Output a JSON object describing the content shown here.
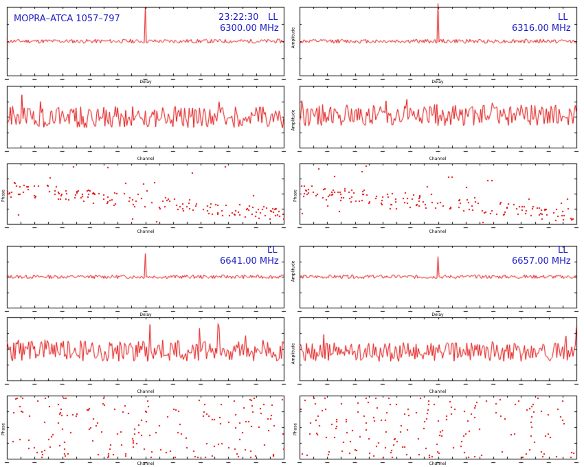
{
  "header": {
    "source": "MOPRA–ATCA 1057–797",
    "time": "23:22:30",
    "polarization": "LL"
  },
  "colors": {
    "trace": "#e00000",
    "title": "#1c1cc8",
    "axis": "#000000"
  },
  "chart_data": [
    {
      "id": "if1-delay",
      "type": "line",
      "kind": "delay",
      "freq_label": "6300.00 MHz",
      "pol": "LL",
      "xlabel": "Delay",
      "ylabel": "",
      "spike_at_fraction": 0.5,
      "spike_height": 0.78,
      "baseline": 0.5,
      "noise": 0.06,
      "seed": 11
    },
    {
      "id": "if2-delay",
      "type": "line",
      "kind": "delay",
      "freq_label": "6316.00 MHz",
      "pol": "LL",
      "xlabel": "Delay",
      "ylabel": "Amplitude",
      "spike_at_fraction": 0.5,
      "spike_height": 0.9,
      "baseline": 0.5,
      "noise": 0.06,
      "seed": 12
    },
    {
      "id": "if1-channel-amp",
      "type": "line",
      "kind": "channel",
      "xlabel": "Channel",
      "ylabel": "",
      "baseline": 0.32,
      "noise": 0.35,
      "seed": 21
    },
    {
      "id": "if2-channel-amp",
      "type": "line",
      "kind": "channel",
      "xlabel": "Channel",
      "ylabel": "Amplitude",
      "baseline": 0.35,
      "noise": 0.35,
      "seed": 22
    },
    {
      "id": "if1-channel-phase",
      "type": "scatter",
      "kind": "phase",
      "xlabel": "Channel",
      "ylabel": "Phase",
      "trend_start": 0.6,
      "trend_end": 0.15,
      "seed": 31
    },
    {
      "id": "if2-channel-phase",
      "type": "scatter",
      "kind": "phase",
      "xlabel": "Channel",
      "ylabel": "Phase",
      "trend_start": 0.55,
      "trend_end": 0.15,
      "seed": 32
    },
    {
      "id": "if3-delay",
      "type": "line",
      "kind": "delay",
      "freq_label": "6641.00 MHz",
      "pol": "LL",
      "xlabel": "Delay",
      "ylabel": "",
      "spike_at_fraction": 0.5,
      "spike_height": 0.55,
      "baseline": 0.5,
      "noise": 0.06,
      "seed": 13
    },
    {
      "id": "if4-delay",
      "type": "line",
      "kind": "delay",
      "freq_label": "6657.00 MHz",
      "pol": "LL",
      "xlabel": "Delay",
      "ylabel": "Amplitude",
      "spike_at_fraction": 0.5,
      "spike_height": 0.45,
      "baseline": 0.5,
      "noise": 0.06,
      "seed": 14
    },
    {
      "id": "if3-channel-amp",
      "type": "line",
      "kind": "channel",
      "xlabel": "Channel",
      "ylabel": "",
      "baseline": 0.3,
      "noise": 0.35,
      "seed": 23
    },
    {
      "id": "if4-channel-amp",
      "type": "line",
      "kind": "channel",
      "xlabel": "Channel",
      "ylabel": "Amplitude",
      "baseline": 0.3,
      "noise": 0.3,
      "seed": 24
    },
    {
      "id": "if3-channel-phase",
      "type": "scatter",
      "kind": "phase-random",
      "xlabel": "Channel",
      "ylabel": "Phase",
      "seed": 33
    },
    {
      "id": "if4-channel-phase",
      "type": "scatter",
      "kind": "phase-random",
      "xlabel": "Channel",
      "ylabel": "Phase",
      "seed": 34
    }
  ]
}
